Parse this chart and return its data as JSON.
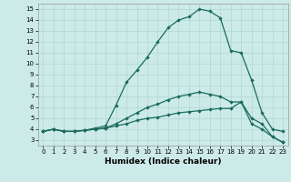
{
  "xlabel": "Humidex (Indice chaleur)",
  "background_color": "#cceae7",
  "line_color": "#1a6b5e",
  "grid_color": "#b0d8d4",
  "spine_color": "#999999",
  "ylim": [
    2.5,
    15.5
  ],
  "xlim": [
    -0.5,
    23.5
  ],
  "yticks": [
    3,
    4,
    5,
    6,
    7,
    8,
    9,
    10,
    11,
    12,
    13,
    14,
    15
  ],
  "xticks": [
    0,
    1,
    2,
    3,
    4,
    5,
    6,
    7,
    8,
    9,
    10,
    11,
    12,
    13,
    14,
    15,
    16,
    17,
    18,
    19,
    20,
    21,
    22,
    23
  ],
  "line1_x": [
    0,
    1,
    2,
    3,
    4,
    5,
    6,
    7,
    8,
    9,
    10,
    11,
    12,
    13,
    14,
    15,
    16,
    17,
    18,
    19,
    20,
    21,
    22,
    23
  ],
  "line1_y": [
    3.8,
    4.0,
    3.8,
    3.8,
    3.9,
    4.0,
    4.1,
    4.3,
    4.5,
    4.8,
    5.0,
    5.1,
    5.3,
    5.5,
    5.6,
    5.7,
    5.8,
    5.9,
    5.9,
    6.5,
    5.0,
    4.5,
    3.3,
    2.8
  ],
  "line2_x": [
    0,
    1,
    2,
    3,
    4,
    5,
    6,
    7,
    8,
    9,
    10,
    11,
    12,
    13,
    14,
    15,
    16,
    17,
    18,
    19,
    20,
    21,
    22,
    23
  ],
  "line2_y": [
    3.8,
    4.0,
    3.8,
    3.8,
    3.9,
    4.1,
    4.3,
    6.2,
    8.3,
    9.4,
    10.6,
    12.0,
    13.3,
    14.0,
    14.3,
    15.0,
    14.8,
    14.2,
    11.2,
    11.0,
    8.5,
    5.5,
    4.0,
    3.8
  ],
  "line3_x": [
    0,
    1,
    2,
    3,
    4,
    5,
    6,
    7,
    8,
    9,
    10,
    11,
    12,
    13,
    14,
    15,
    16,
    17,
    18,
    19,
    20,
    21,
    22,
    23
  ],
  "line3_y": [
    3.8,
    4.0,
    3.8,
    3.8,
    3.9,
    4.0,
    4.1,
    4.5,
    5.0,
    5.5,
    6.0,
    6.3,
    6.7,
    7.0,
    7.2,
    7.4,
    7.2,
    7.0,
    6.5,
    6.5,
    4.5,
    4.0,
    3.3,
    2.8
  ],
  "xlabel_fontsize": 6.5,
  "tick_fontsize": 5.0,
  "marker_size": 2.2,
  "line_width": 0.9
}
